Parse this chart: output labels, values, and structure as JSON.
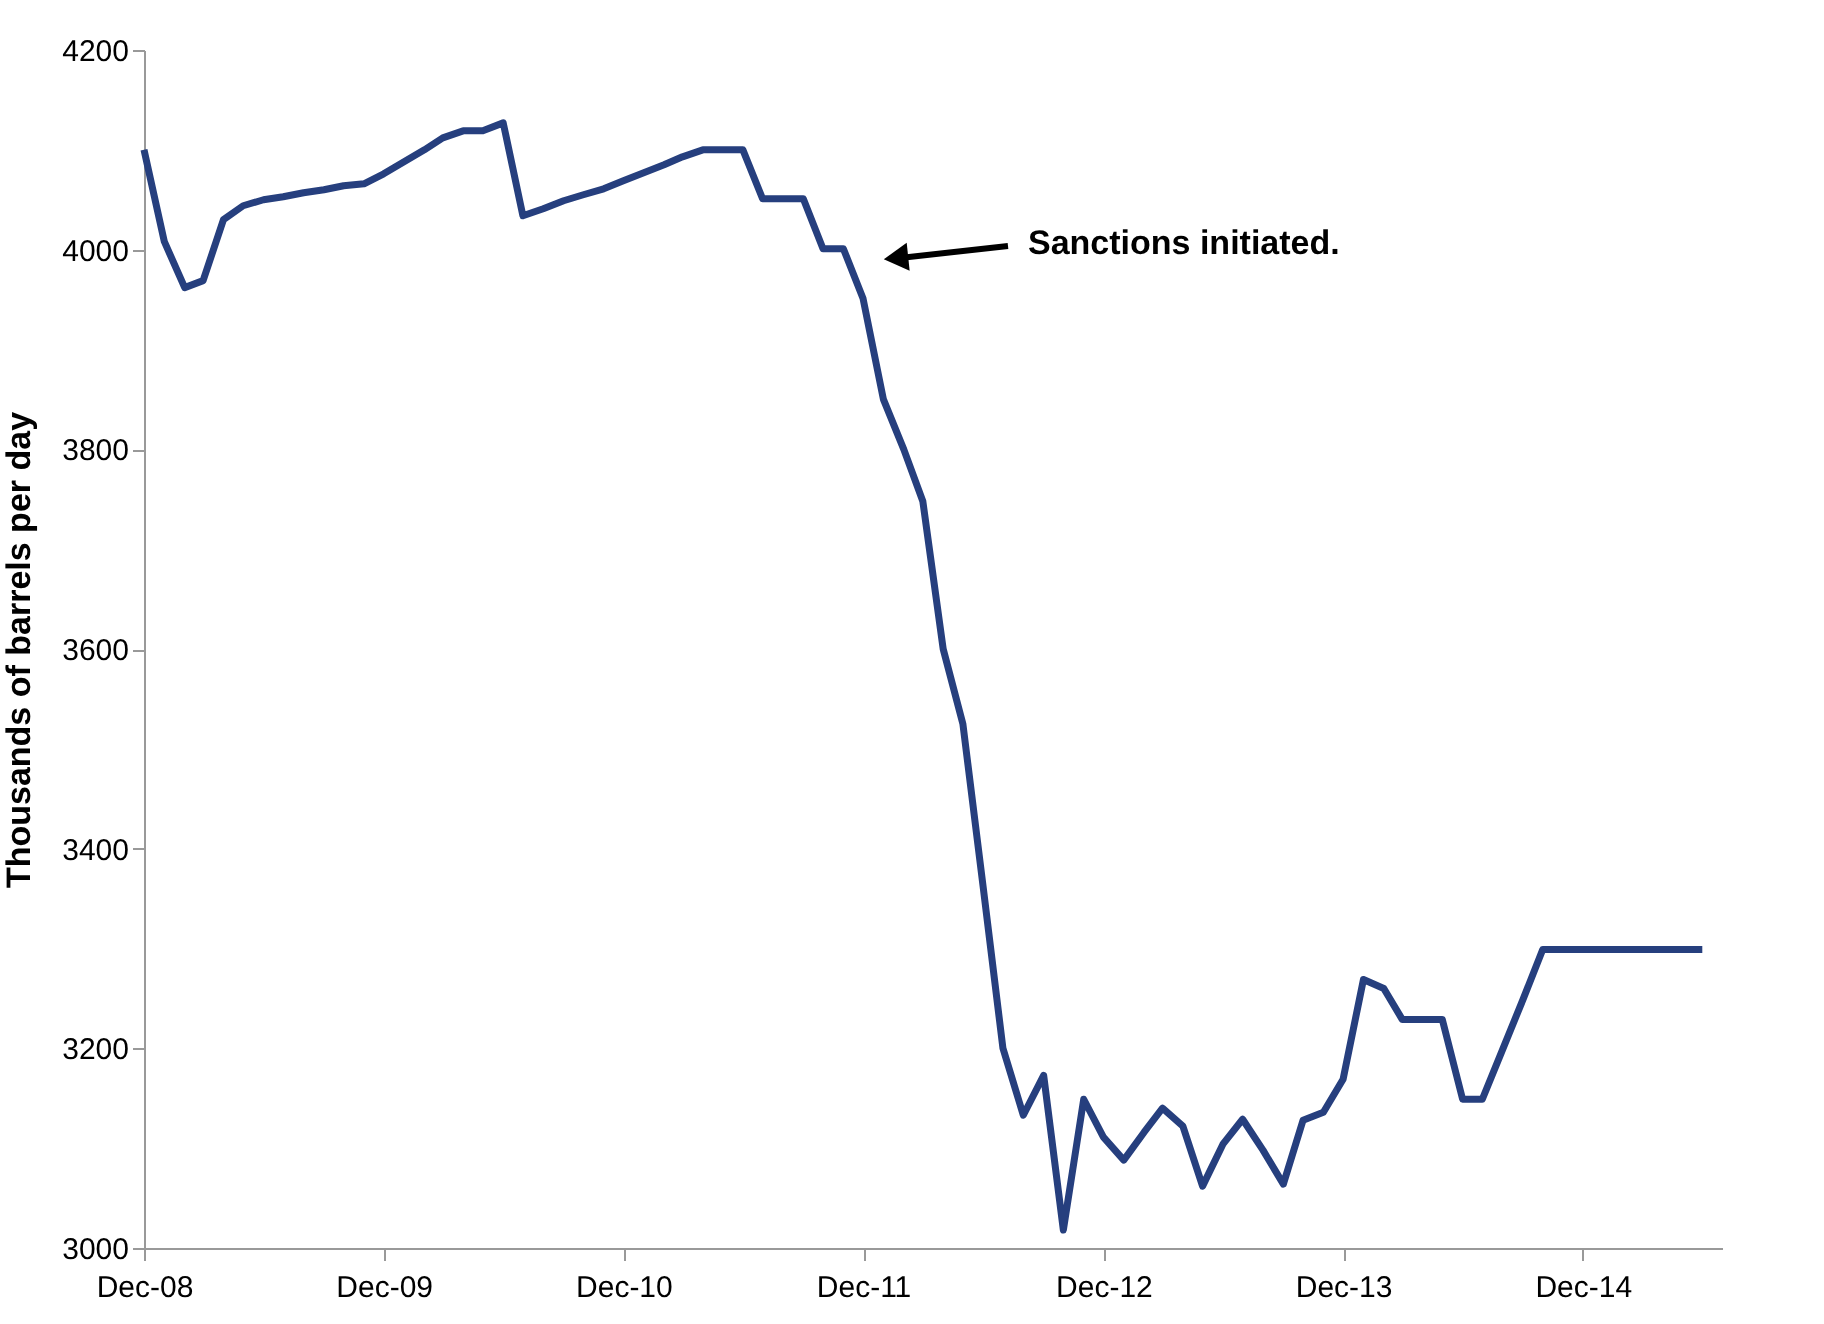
{
  "chart_data": {
    "type": "line",
    "ylabel": "Thousands of barrels per day",
    "x": [
      "2008-12",
      "2009-01",
      "2009-02",
      "2009-03",
      "2009-04",
      "2009-05",
      "2009-06",
      "2009-07",
      "2009-08",
      "2009-09",
      "2009-10",
      "2009-11",
      "2009-12",
      "2010-01",
      "2010-02",
      "2010-03",
      "2010-04",
      "2010-05",
      "2010-06",
      "2010-07",
      "2010-08",
      "2010-09",
      "2010-10",
      "2010-11",
      "2010-12",
      "2011-01",
      "2011-02",
      "2011-03",
      "2011-04",
      "2011-05",
      "2011-06",
      "2011-07",
      "2011-08",
      "2011-09",
      "2011-10",
      "2011-11",
      "2011-12",
      "2012-01",
      "2012-02",
      "2012-03",
      "2012-04",
      "2012-05",
      "2012-06",
      "2012-07",
      "2012-08",
      "2012-09",
      "2012-10",
      "2012-11",
      "2012-12",
      "2013-01",
      "2013-02",
      "2013-03",
      "2013-04",
      "2013-05",
      "2013-06",
      "2013-07",
      "2013-08",
      "2013-09",
      "2013-10",
      "2013-11",
      "2013-12",
      "2014-01",
      "2014-02",
      "2014-03",
      "2014-04",
      "2014-05",
      "2014-06",
      "2014-07",
      "2014-08",
      "2014-09",
      "2014-10",
      "2014-11",
      "2014-12",
      "2015-01",
      "2015-02",
      "2015-03",
      "2015-04",
      "2015-05",
      "2015-06"
    ],
    "series": [
      {
        "color": "#263f7e",
        "values": [
          4100,
          4008,
          3962,
          3969,
          4030,
          4044,
          4050,
          4053,
          4057,
          4060,
          4064,
          4066,
          4076,
          4088,
          4100,
          4112,
          4119,
          4119,
          4127,
          4034,
          4041,
          4049,
          4055,
          4061,
          4069,
          4077,
          4085,
          4093,
          4100,
          4100,
          4100,
          4051,
          4051,
          4051,
          4001,
          4001,
          3951,
          3850,
          3800,
          3748,
          3600,
          3525,
          3361,
          3200,
          3133,
          3173,
          3018,
          3149,
          3111,
          3088,
          3116,
          3140,
          3122,
          3062,
          3104,
          3129,
          3098,
          3064,
          3128,
          3136,
          3169,
          3269,
          3260,
          3229,
          3229,
          3229,
          3149,
          3149,
          3199,
          3249,
          3299,
          3299,
          3299,
          3299,
          3299,
          3299,
          3299,
          3299,
          3299
        ]
      }
    ],
    "xlim": [
      "2008-12",
      "2015-07"
    ],
    "xticks": [
      {
        "value": "2008-12",
        "label": "Dec-08"
      },
      {
        "value": "2009-12",
        "label": "Dec-09"
      },
      {
        "value": "2010-12",
        "label": "Dec-10"
      },
      {
        "value": "2011-12",
        "label": "Dec-11"
      },
      {
        "value": "2012-12",
        "label": "Dec-12"
      },
      {
        "value": "2013-12",
        "label": "Dec-13"
      },
      {
        "value": "2014-12",
        "label": "Dec-14"
      }
    ],
    "ylim": [
      3000,
      4200
    ],
    "yticks": [
      3000,
      3200,
      3400,
      3600,
      3800,
      4000,
      4200
    ],
    "grid": false,
    "marker": "none",
    "line_style": "solid",
    "annotations": [
      "Sanctions initiated."
    ]
  }
}
